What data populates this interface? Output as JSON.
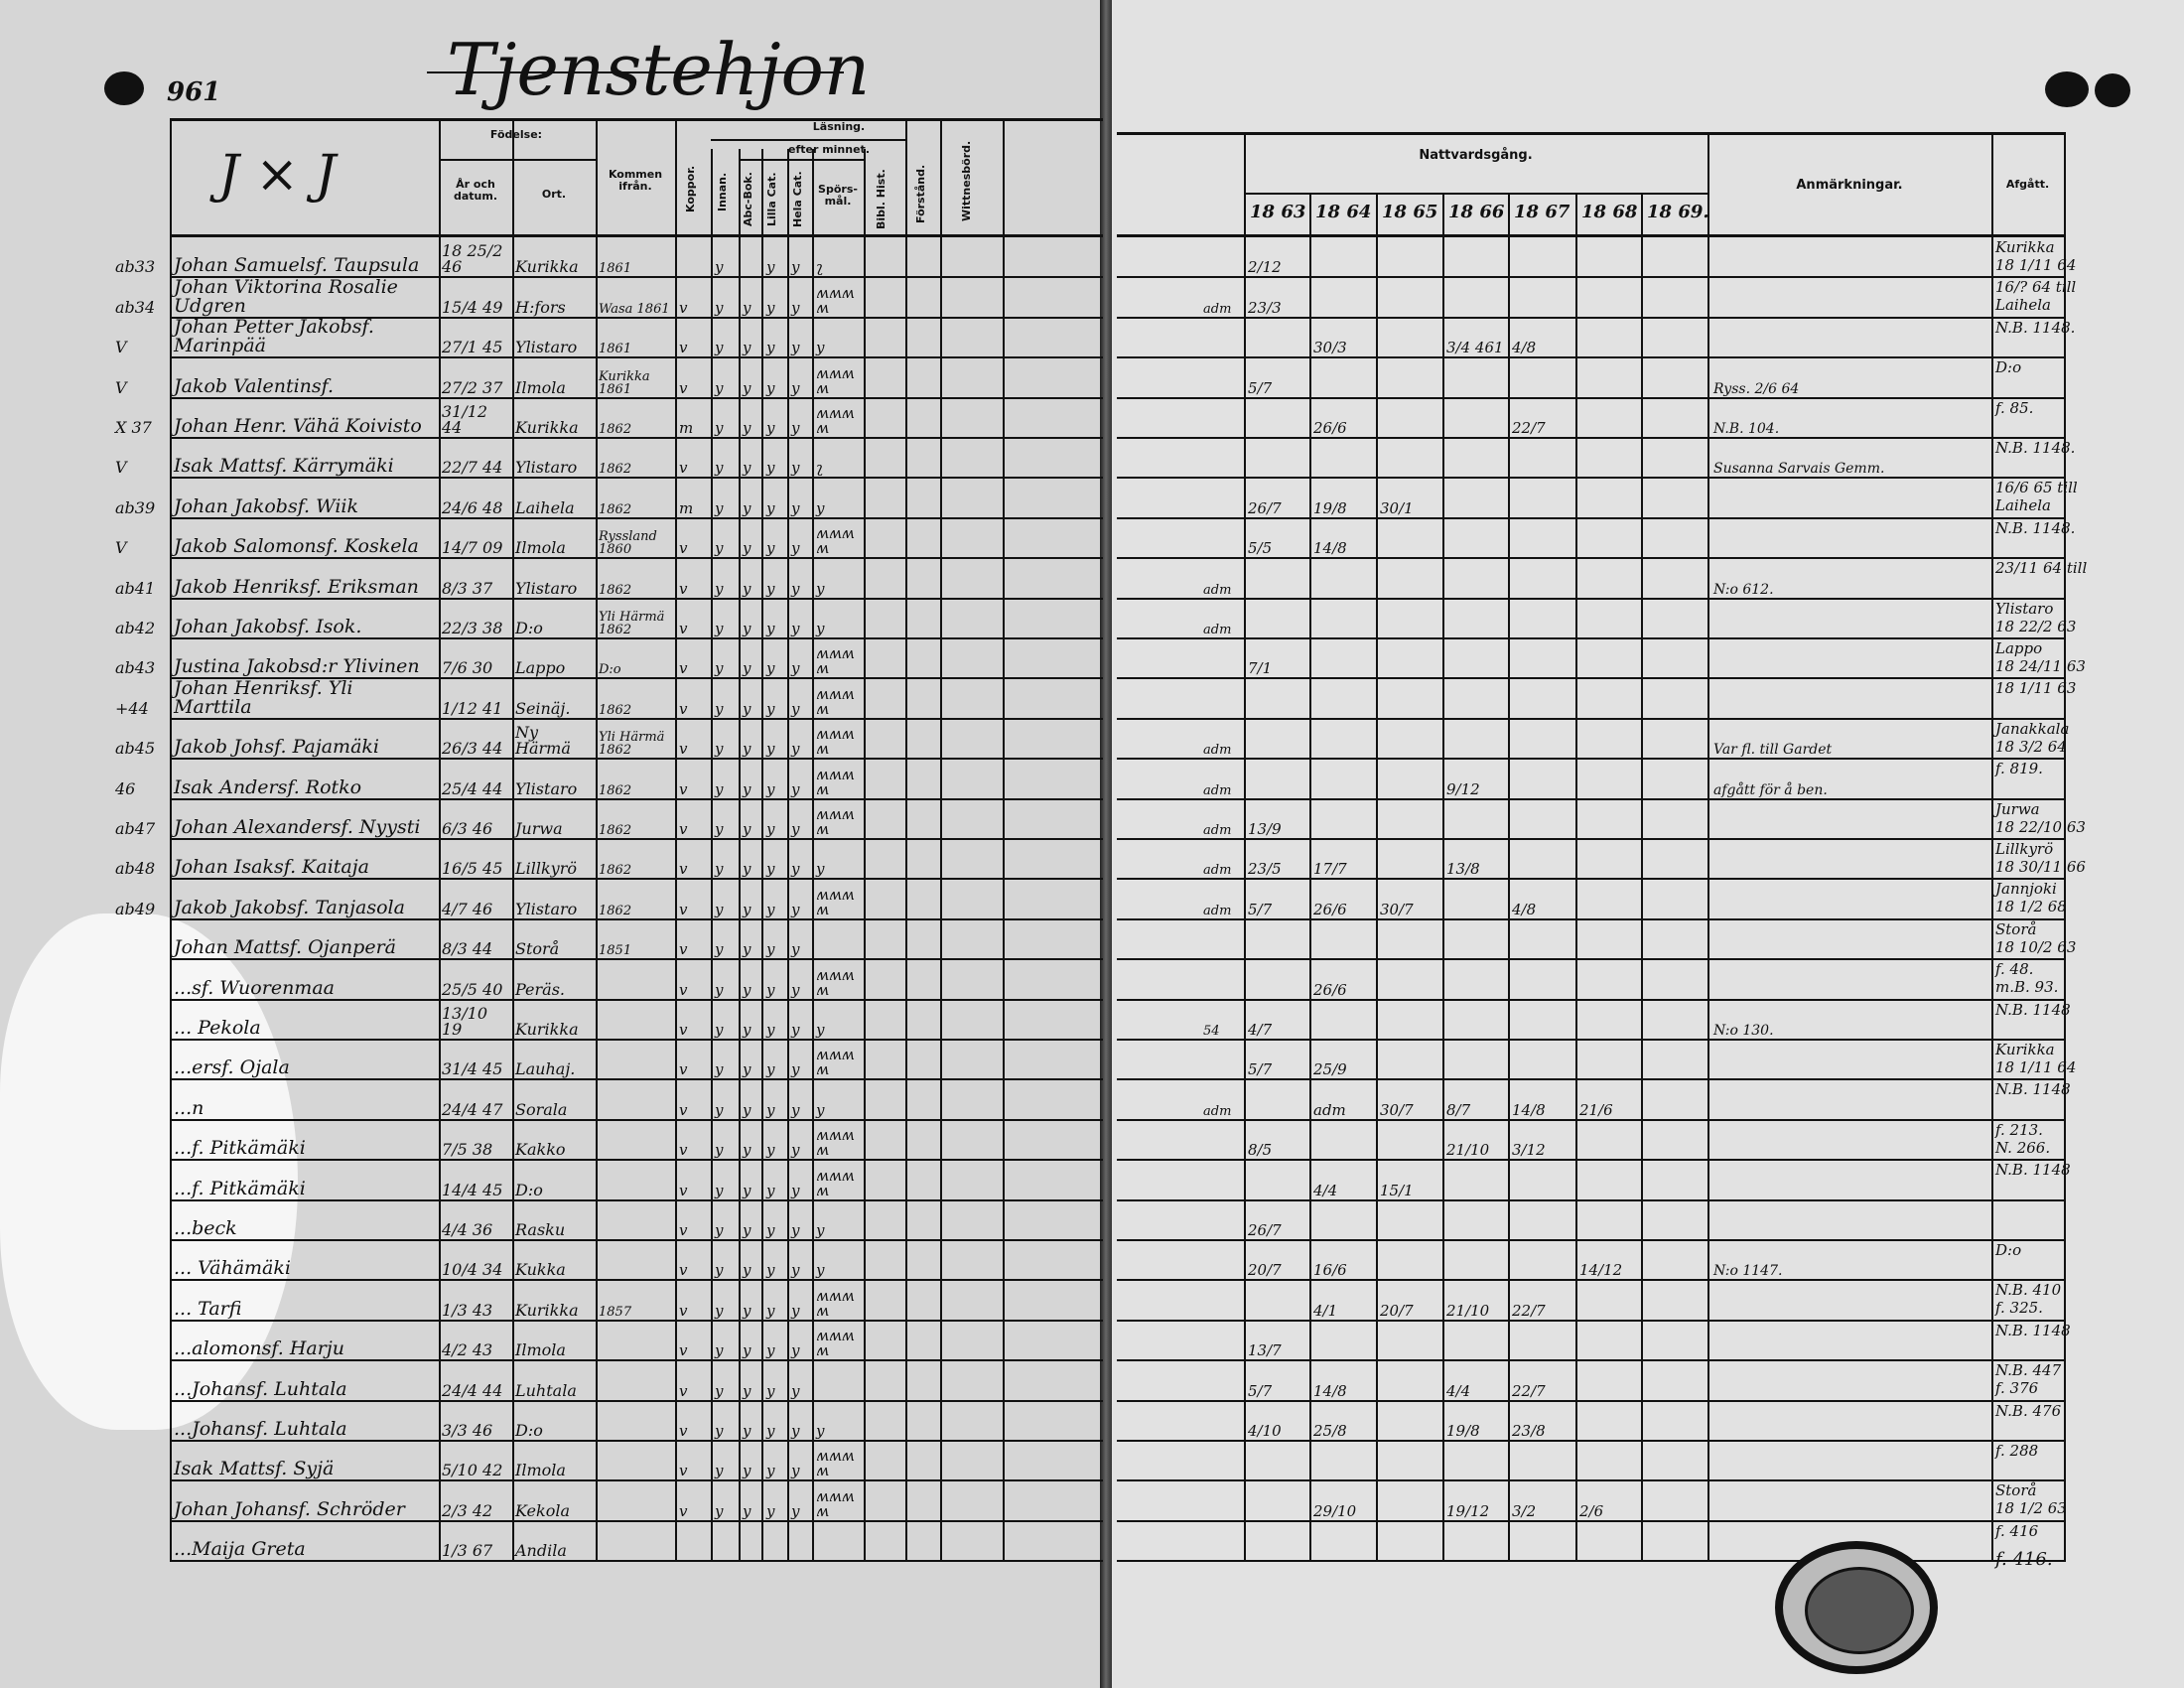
{
  "left_page": {
    "page_number": "961",
    "title": "Tjenstehjon",
    "letters": "J × J",
    "headers": {
      "birth": "Födelse:",
      "year_date": "År och datum.",
      "place": "Ort.",
      "came_from": "Kommen ifrån.",
      "vaccinated": "Koppor.",
      "reading": "Läsning.",
      "inside": "Innan.",
      "by_heart": "efter minnet.",
      "abc": "Abc-Bok.",
      "small_cat": "Lilla Cat.",
      "full_cat": "Hela Cat.",
      "questions": "Spörs-mål.",
      "bible_hist": "Bibl. Hist.",
      "understanding": "Förstånd.",
      "last": "Wittnesbörd."
    },
    "rows": [
      {
        "note": "ab33",
        "name": "Johan Samuelsf. Taupsula",
        "date": "18 25/2 46",
        "place": "Kurikka",
        "from": "1861",
        "reading": [
          "",
          "y",
          "",
          "y",
          "y",
          "ʅ"
        ]
      },
      {
        "note": "ab34",
        "name": "Johan Viktorina Rosalie Udgren",
        "date": "15/4 49",
        "place": "H:fors",
        "from": "Wasa 1861",
        "reading": [
          "v",
          "y",
          "y",
          "y",
          "y",
          "ʍʍʍʍ"
        ]
      },
      {
        "note": "V",
        "name": "Johan Petter Jakobsf. Marinpää",
        "date": "27/1 45",
        "place": "Ylistaro",
        "from": "1861",
        "reading": [
          "v",
          "y",
          "y",
          "y",
          "y",
          "y"
        ]
      },
      {
        "note": "V",
        "name": "Jakob Valentinsf.",
        "date": "27/2 37",
        "place": "Ilmola",
        "from": "Kurikka 1861",
        "reading": [
          "v",
          "y",
          "y",
          "y",
          "y",
          "ʍʍʍʍ"
        ]
      },
      {
        "note": "X 37",
        "name": "Johan Henr. Vähä Koivisto",
        "date": "31/12 44",
        "place": "Kurikka",
        "from": "1862",
        "reading": [
          "m",
          "y",
          "y",
          "y",
          "y",
          "ʍʍʍʍ"
        ]
      },
      {
        "note": "V",
        "name": "Isak Mattsf. Kärrymäki",
        "date": "22/7 44",
        "place": "Ylistaro",
        "from": "1862",
        "reading": [
          "v",
          "y",
          "y",
          "y",
          "y",
          "ʅ"
        ]
      },
      {
        "note": "ab39",
        "name": "Johan Jakobsf. Wiik",
        "date": "24/6 48",
        "place": "Laihela",
        "from": "1862",
        "reading": [
          "m",
          "y",
          "y",
          "y",
          "y",
          "y"
        ]
      },
      {
        "note": "V",
        "name": "Jakob Salomonsf. Koskela",
        "date": "14/7 09",
        "place": "Ilmola",
        "from": "Ryssland 1860",
        "reading": [
          "v",
          "y",
          "y",
          "y",
          "y",
          "ʍʍʍʍ"
        ]
      },
      {
        "note": "ab41",
        "name": "Jakob Henriksf. Eriksman",
        "date": "8/3 37",
        "place": "Ylistaro",
        "from": "1862",
        "reading": [
          "v",
          "y",
          "y",
          "y",
          "y",
          "y"
        ]
      },
      {
        "note": "ab42",
        "name": "Johan Jakobsf. Isok.",
        "date": "22/3 38",
        "place": "D:o",
        "from": "Yli Härmä 1862",
        "reading": [
          "v",
          "y",
          "y",
          "y",
          "y",
          "y"
        ]
      },
      {
        "note": "ab43",
        "name": "Justina Jakobsd:r Ylivinen",
        "date": "7/6 30",
        "place": "Lappo",
        "from": "D:o",
        "reading": [
          "v",
          "y",
          "y",
          "y",
          "y",
          "ʍʍʍʍ"
        ]
      },
      {
        "note": "+44",
        "name": "Johan Henriksf. Yli Marttila",
        "date": "1/12 41",
        "place": "Seinäj.",
        "from": "1862",
        "reading": [
          "v",
          "y",
          "y",
          "y",
          "y",
          "ʍʍʍʍ"
        ]
      },
      {
        "note": "ab45",
        "name": "Jakob Johsf. Pajamäki",
        "date": "26/3 44",
        "place": "Ny Härmä",
        "from": "Yli Härmä 1862",
        "reading": [
          "v",
          "y",
          "y",
          "y",
          "y",
          "ʍʍʍʍ"
        ]
      },
      {
        "note": "46",
        "name": "Isak Andersf. Rotko",
        "date": "25/4 44",
        "place": "Ylistaro",
        "from": "1862",
        "reading": [
          "v",
          "y",
          "y",
          "y",
          "y",
          "ʍʍʍʍ"
        ]
      },
      {
        "note": "ab47",
        "name": "Johan Alexandersf. Nyysti",
        "date": "6/3 46",
        "place": "Jurwa",
        "from": "1862",
        "reading": [
          "v",
          "y",
          "y",
          "y",
          "y",
          "ʍʍʍʍ"
        ]
      },
      {
        "note": "ab48",
        "name": "Johan Isaksf. Kaitaja",
        "date": "16/5 45",
        "place": "Lillkyrö",
        "from": "1862",
        "reading": [
          "v",
          "y",
          "y",
          "y",
          "y",
          "y"
        ]
      },
      {
        "note": "ab49",
        "name": "Jakob Jakobsf. Tanjasola",
        "date": "4/7 46",
        "place": "Ylistaro",
        "from": "1862",
        "reading": [
          "v",
          "y",
          "y",
          "y",
          "y",
          "ʍʍʍʍ"
        ]
      },
      {
        "note": "",
        "name": "Johan Mattsf. Ojanperä",
        "date": "8/3 44",
        "place": "Storå",
        "from": "1851",
        "reading": [
          "v",
          "y",
          "y",
          "y",
          "y",
          ""
        ]
      },
      {
        "note": "",
        "name": "...sf. Wuorenmaa",
        "date": "25/5 40",
        "place": "Peräs.",
        "from": "",
        "reading": [
          "v",
          "y",
          "y",
          "y",
          "y",
          "ʍʍʍʍ"
        ]
      },
      {
        "note": "",
        "name": "... Pekola",
        "date": "13/10 19",
        "place": "Kurikka",
        "from": "",
        "reading": [
          "v",
          "y",
          "y",
          "y",
          "y",
          "y"
        ]
      },
      {
        "note": "",
        "name": "...ersf. Ojala",
        "date": "31/4 45",
        "place": "Lauhaj.",
        "from": "",
        "reading": [
          "v",
          "y",
          "y",
          "y",
          "y",
          "ʍʍʍʍ"
        ]
      },
      {
        "note": "",
        "name": "...n",
        "date": "24/4 47",
        "place": "Sorala",
        "from": "",
        "reading": [
          "v",
          "y",
          "y",
          "y",
          "y",
          "y"
        ]
      },
      {
        "note": "",
        "name": "...f. Pitkämäki",
        "date": "7/5 38",
        "place": "Kakko",
        "from": "",
        "reading": [
          "v",
          "y",
          "y",
          "y",
          "y",
          "ʍʍʍʍ"
        ]
      },
      {
        "note": "",
        "name": "...f. Pitkämäki",
        "date": "14/4 45",
        "place": "D:o",
        "from": "",
        "reading": [
          "v",
          "y",
          "y",
          "y",
          "y",
          "ʍʍʍʍ"
        ]
      },
      {
        "note": "",
        "name": "...beck",
        "date": "4/4 36",
        "place": "Rasku",
        "from": "",
        "reading": [
          "v",
          "y",
          "y",
          "y",
          "y",
          "y"
        ]
      },
      {
        "note": "",
        "name": "... Vähämäki",
        "date": "10/4 34",
        "place": "Kukka",
        "from": "",
        "reading": [
          "v",
          "y",
          "y",
          "y",
          "y",
          "y"
        ]
      },
      {
        "note": "",
        "name": "... Tarfi",
        "date": "1/3 43",
        "place": "Kurikka",
        "from": "1857",
        "reading": [
          "v",
          "y",
          "y",
          "y",
          "y",
          "ʍʍʍʍ"
        ]
      },
      {
        "note": "",
        "name": "...alomonsf. Harju",
        "date": "4/2 43",
        "place": "Ilmola",
        "from": "",
        "reading": [
          "v",
          "y",
          "y",
          "y",
          "y",
          "ʍʍʍʍ"
        ]
      },
      {
        "note": "",
        "name": "...Johansf. Luhtala",
        "date": "24/4 44",
        "place": "Luhtala",
        "from": "",
        "reading": [
          "v",
          "y",
          "y",
          "y",
          "y",
          ""
        ]
      },
      {
        "note": "",
        "name": "...Johansf. Luhtala",
        "date": "3/3 46",
        "place": "D:o",
        "from": "",
        "reading": [
          "v",
          "y",
          "y",
          "y",
          "y",
          "y"
        ]
      },
      {
        "note": "",
        "name": "Isak Mattsf. Syjä",
        "date": "5/10 42",
        "place": "Ilmola",
        "from": "",
        "reading": [
          "v",
          "y",
          "y",
          "y",
          "y",
          "ʍʍʍʍ"
        ]
      },
      {
        "note": "",
        "name": "Johan Johansf. Schröder",
        "date": "2/3 42",
        "place": "Kekola",
        "from": "",
        "reading": [
          "v",
          "y",
          "y",
          "y",
          "y",
          "ʍʍʍʍ"
        ]
      },
      {
        "note": "",
        "name": "...Maija Greta",
        "date": "1/3 67",
        "place": "Andila",
        "from": "",
        "reading": [
          "",
          "",
          "",
          "",
          "",
          ""
        ]
      }
    ]
  },
  "right_page": {
    "headers": {
      "communion": "Nattvardsgång.",
      "years": [
        "18 63",
        "18 64",
        "18 65",
        "18 66",
        "18 67",
        "18 68",
        "18 69."
      ],
      "remarks": "Anmärkningar.",
      "departed": "Afgått."
    },
    "rows": [
      {
        "note": "",
        "comm": [
          "2/12",
          "",
          "",
          "",
          "",
          "",
          ""
        ],
        "remarks": "",
        "departed": [
          "Kurikka",
          "18 1/11 64"
        ]
      },
      {
        "note": "adm",
        "comm": [
          "23/3",
          "",
          "",
          "",
          "",
          "",
          ""
        ],
        "remarks": "",
        "departed": [
          "16/? 64 till",
          "Laihela"
        ]
      },
      {
        "note": "",
        "comm": [
          "",
          "30/3",
          "",
          "3/4 461",
          "4/8",
          "",
          ""
        ],
        "remarks": "",
        "departed": [
          "N.B. 1148.",
          ""
        ]
      },
      {
        "note": "",
        "comm": [
          "5/7",
          "",
          "",
          "",
          "",
          "",
          ""
        ],
        "remarks": "Ryss. 2/6 64",
        "departed": [
          "D:o",
          ""
        ]
      },
      {
        "note": "",
        "comm": [
          "",
          "26/6",
          "",
          "",
          "22/7",
          "",
          ""
        ],
        "remarks": "N.B. 104.",
        "departed": [
          "f. 85.",
          ""
        ]
      },
      {
        "note": "",
        "comm": [
          "",
          "",
          "",
          "",
          "",
          "",
          ""
        ],
        "remarks": "Susanna Sarvais Gemm.",
        "departed": [
          "N.B. 1148.",
          ""
        ]
      },
      {
        "note": "",
        "comm": [
          "26/7",
          "19/8",
          "30/1",
          "",
          "",
          "",
          ""
        ],
        "remarks": "",
        "departed": [
          "16/6 65 till",
          "Laihela"
        ]
      },
      {
        "note": "",
        "comm": [
          "5/5",
          "14/8",
          "",
          "",
          "",
          "",
          ""
        ],
        "remarks": "",
        "departed": [
          "N.B. 1148.",
          ""
        ]
      },
      {
        "note": "adm",
        "comm": [
          "",
          "",
          "",
          "",
          "",
          "",
          ""
        ],
        "remarks": "N:o 612.",
        "departed": [
          "23/11 64 till",
          ""
        ]
      },
      {
        "note": "adm",
        "comm": [
          "",
          "",
          "",
          "",
          "",
          "",
          ""
        ],
        "remarks": "",
        "departed": [
          "Ylistaro",
          "18 22/2 63"
        ]
      },
      {
        "note": "",
        "comm": [
          "7/1",
          "",
          "",
          "",
          "",
          "",
          ""
        ],
        "remarks": "",
        "departed": [
          "Lappo",
          "18 24/11 63"
        ]
      },
      {
        "note": "",
        "comm": [
          "",
          "",
          "",
          "",
          "",
          "",
          ""
        ],
        "remarks": "",
        "departed": [
          "18 1/11 63",
          ""
        ]
      },
      {
        "note": "adm",
        "comm": [
          "",
          "",
          "",
          "",
          "",
          "",
          ""
        ],
        "remarks": "Var fl. till Gardet",
        "departed": [
          "Janakkala",
          "18 3/2 64"
        ]
      },
      {
        "note": "adm",
        "comm": [
          "",
          "",
          "",
          "9/12",
          "",
          "",
          ""
        ],
        "remarks": "afgått för å ben.",
        "departed": [
          "f. 819.",
          ""
        ]
      },
      {
        "note": "adm",
        "comm": [
          "13/9",
          "",
          "",
          "",
          "",
          "",
          ""
        ],
        "remarks": "",
        "departed": [
          "Jurwa",
          "18 22/10 63"
        ]
      },
      {
        "note": "adm",
        "comm": [
          "23/5",
          "17/7",
          "",
          "13/8",
          "",
          "",
          ""
        ],
        "remarks": "",
        "departed": [
          "Lillkyrö",
          "18 30/11 66"
        ]
      },
      {
        "note": "adm",
        "comm": [
          "5/7",
          "26/6",
          "30/7",
          "",
          "4/8",
          "",
          ""
        ],
        "remarks": "",
        "departed": [
          "Jannjoki",
          "18 1/2 68"
        ]
      },
      {
        "note": "",
        "comm": [
          "",
          "",
          "",
          "",
          "",
          "",
          ""
        ],
        "remarks": "",
        "departed": [
          "Storå",
          "18 10/2 63"
        ]
      },
      {
        "note": "",
        "comm": [
          "",
          "26/6",
          "",
          "",
          "",
          "",
          ""
        ],
        "remarks": "",
        "departed": [
          "f. 48.",
          "m.B. 93."
        ]
      },
      {
        "note": "54",
        "comm": [
          "4/7",
          "",
          "",
          "",
          "",
          "",
          ""
        ],
        "remarks": "N:o 130.",
        "departed": [
          "N.B. 1148",
          ""
        ]
      },
      {
        "note": "",
        "comm": [
          "5/7",
          "25/9",
          "",
          "",
          "",
          "",
          ""
        ],
        "remarks": "",
        "departed": [
          "Kurikka",
          "18 1/11 64"
        ]
      },
      {
        "note": "adm",
        "comm": [
          "",
          "adm",
          "30/7",
          "8/7",
          "14/8",
          "21/6",
          ""
        ],
        "remarks": "",
        "departed": [
          "N.B. 1148",
          ""
        ]
      },
      {
        "note": "",
        "comm": [
          "8/5",
          "",
          "",
          "21/10",
          "3/12",
          "",
          ""
        ],
        "remarks": "",
        "departed": [
          "f. 213.",
          "N. 266."
        ]
      },
      {
        "note": "",
        "comm": [
          "",
          "4/4",
          "15/1",
          "",
          "",
          "",
          ""
        ],
        "remarks": "",
        "departed": [
          "N.B. 1148",
          ""
        ]
      },
      {
        "note": "",
        "comm": [
          "26/7",
          "",
          "",
          "",
          "",
          "",
          ""
        ],
        "remarks": "",
        "departed": [
          "",
          ""
        ]
      },
      {
        "note": "",
        "comm": [
          "20/7",
          "16/6",
          "",
          "",
          "",
          "14/12",
          ""
        ],
        "remarks": "N:o 1147.",
        "departed": [
          "D:o",
          ""
        ]
      },
      {
        "note": "",
        "comm": [
          "",
          "4/1",
          "20/7",
          "21/10",
          "22/7",
          "",
          ""
        ],
        "remarks": "",
        "departed": [
          "N.B. 410",
          "f. 325."
        ]
      },
      {
        "note": "",
        "comm": [
          "13/7",
          "",
          "",
          "",
          "",
          "",
          ""
        ],
        "remarks": "",
        "departed": [
          "N.B. 1148",
          ""
        ]
      },
      {
        "note": "",
        "comm": [
          "5/7",
          "14/8",
          "",
          "4/4",
          "22/7",
          "",
          ""
        ],
        "remarks": "",
        "departed": [
          "N.B. 447",
          "f. 376"
        ]
      },
      {
        "note": "",
        "comm": [
          "4/10",
          "25/8",
          "",
          "19/8",
          "23/8",
          "",
          ""
        ],
        "remarks": "",
        "departed": [
          "N.B. 476",
          ""
        ]
      },
      {
        "note": "",
        "comm": [
          "",
          "",
          "",
          "",
          "",
          "",
          ""
        ],
        "remarks": "",
        "departed": [
          "f. 288",
          ""
        ]
      },
      {
        "note": "",
        "comm": [
          "",
          "29/10",
          "",
          "19/12",
          "3/2",
          "2/6",
          ""
        ],
        "remarks": "",
        "departed": [
          "Storå",
          "18 1/2 63"
        ]
      },
      {
        "note": "",
        "comm": [
          "",
          "",
          "",
          "",
          "",
          "",
          ""
        ],
        "remarks": "",
        "departed": [
          "f. 416",
          ""
        ]
      }
    ],
    "footer_note": "f. 416."
  }
}
